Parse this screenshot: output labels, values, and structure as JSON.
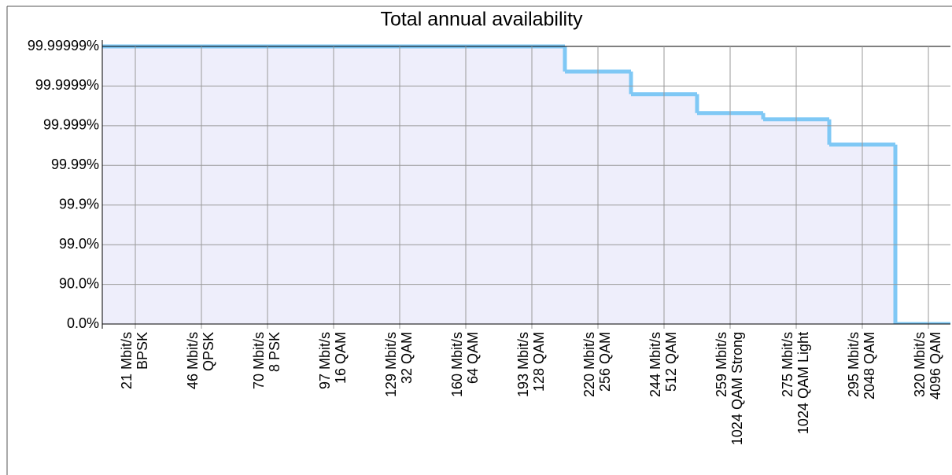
{
  "chart_data": {
    "type": "step",
    "title": "Total annual availability",
    "categories": [
      [
        "21 Mbit/s",
        "BPSK"
      ],
      [
        "46 Mbit/s",
        "QPSK"
      ],
      [
        "70 Mbit/s",
        "8 PSK"
      ],
      [
        "97 Mbit/s",
        "16 QAM"
      ],
      [
        "129 Mbit/s",
        "32 QAM"
      ],
      [
        "160 Mbit/s",
        "64 QAM"
      ],
      [
        "193 Mbit/s",
        "128 QAM"
      ],
      [
        "220 Mbit/s",
        "256 QAM"
      ],
      [
        "244 Mbit/s",
        "512 QAM"
      ],
      [
        "259 Mbit/s",
        "1024 QAM Strong"
      ],
      [
        "275 Mbit/s",
        "1024 QAM Light"
      ],
      [
        "295 Mbit/s",
        "2048 QAM"
      ],
      [
        "320 Mbit/s",
        "4096 QAM"
      ]
    ],
    "values": [
      99.99999,
      99.99999,
      99.99999,
      99.99999,
      99.99999,
      99.99999,
      99.99999,
      99.999957,
      99.99984,
      99.99952,
      99.99931,
      99.997,
      0
    ],
    "color": "#7fc8f5",
    "fill": "#eeeefb",
    "yscale": "nines",
    "ylim": [
      0,
      99.99999
    ],
    "yticks": [
      {
        "value": 0,
        "label": "0.0%"
      },
      {
        "value": 90,
        "label": "90.0%"
      },
      {
        "value": 99,
        "label": "99.0%"
      },
      {
        "value": 99.9,
        "label": "99.9%"
      },
      {
        "value": 99.99,
        "label": "99.99%"
      },
      {
        "value": 99.999,
        "label": "99.999%"
      },
      {
        "value": 99.9999,
        "label": "99.9999%"
      },
      {
        "value": 99.99999,
        "label": "99.99999%"
      }
    ],
    "grid": true
  }
}
